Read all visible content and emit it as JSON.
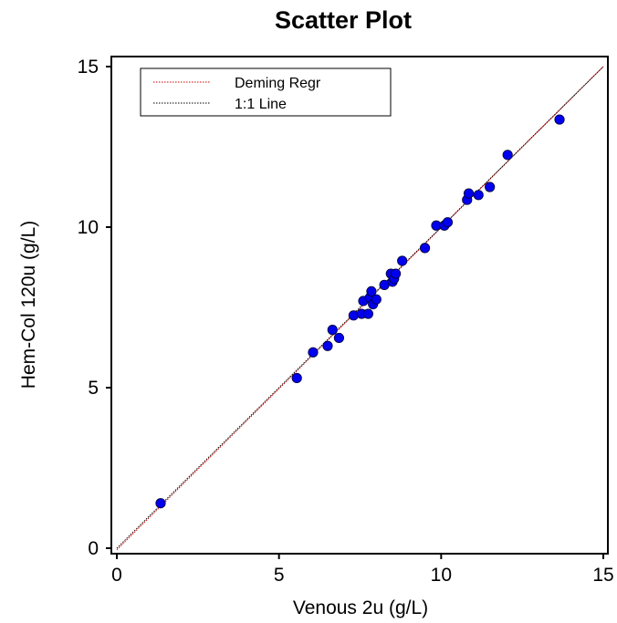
{
  "chart_data": {
    "type": "scatter",
    "title": "Scatter Plot",
    "xlabel": "Venous 2u (g/L)",
    "ylabel": "Hem-Col 120u (g/L)",
    "xlim": [
      0,
      15
    ],
    "ylim": [
      0,
      15
    ],
    "xticks": [
      0,
      5,
      10,
      15
    ],
    "yticks": [
      0,
      5,
      10,
      15
    ],
    "grid": false,
    "legend_position": "top-left",
    "points": {
      "color": "#0000ee",
      "x": [
        1.35,
        5.55,
        6.05,
        6.5,
        6.65,
        6.85,
        7.3,
        7.55,
        7.6,
        7.75,
        7.8,
        7.85,
        7.9,
        8.0,
        8.25,
        8.45,
        8.5,
        8.55,
        8.6,
        8.8,
        9.5,
        9.85,
        10.1,
        10.2,
        10.8,
        10.85,
        11.15,
        11.5,
        12.05,
        13.65
      ],
      "y": [
        1.4,
        5.3,
        6.1,
        6.3,
        6.8,
        6.55,
        7.25,
        7.3,
        7.7,
        7.3,
        7.8,
        8.0,
        7.6,
        7.75,
        8.2,
        8.55,
        8.3,
        8.4,
        8.55,
        8.95,
        9.35,
        10.05,
        10.05,
        10.15,
        10.85,
        11.05,
        11.0,
        11.25,
        12.25,
        13.35
      ]
    },
    "lines": [
      {
        "name": "Deming Regr",
        "color": "#cc0000",
        "style": "dotted",
        "x": [
          0,
          15
        ],
        "y": [
          -0.05,
          15.0
        ]
      },
      {
        "name": "1:1 Line",
        "color": "#000000",
        "style": "dotted",
        "x": [
          0,
          15
        ],
        "y": [
          0,
          15
        ]
      }
    ]
  }
}
